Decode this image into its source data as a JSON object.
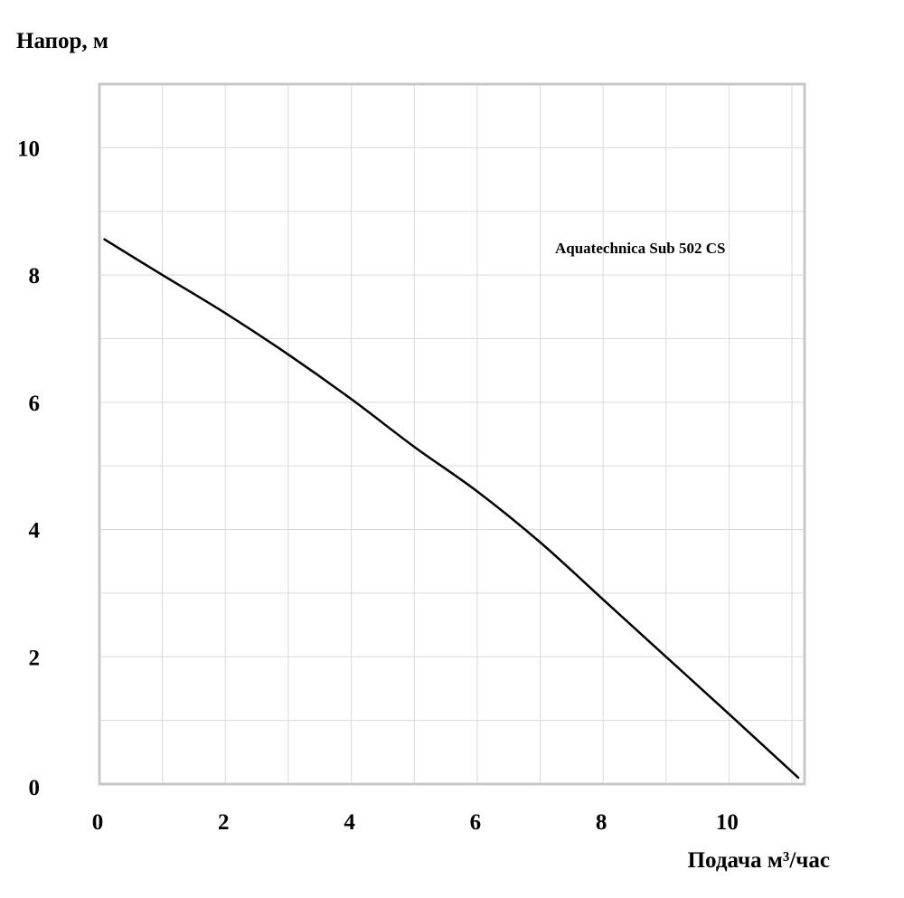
{
  "chart_data": {
    "type": "line",
    "title": "",
    "xlabel": "Подача м³/час",
    "ylabel": "Напор, м",
    "xlim": [
      0,
      11.2
    ],
    "ylim": [
      0,
      11
    ],
    "x_ticks": [
      0,
      2,
      4,
      6,
      8,
      10
    ],
    "y_ticks": [
      0,
      2,
      4,
      6,
      8,
      10
    ],
    "grid": true,
    "legend": "top-right",
    "series": [
      {
        "name": "Aquatechnica Sub 502 CS",
        "color": "#000000",
        "x": [
          0.08,
          1,
          2,
          3,
          4,
          5,
          6,
          7,
          8,
          9,
          10,
          11.1
        ],
        "y": [
          8.56,
          8.0,
          7.4,
          6.75,
          6.05,
          5.3,
          4.6,
          3.8,
          2.9,
          2.0,
          1.1,
          0.1
        ]
      }
    ]
  }
}
